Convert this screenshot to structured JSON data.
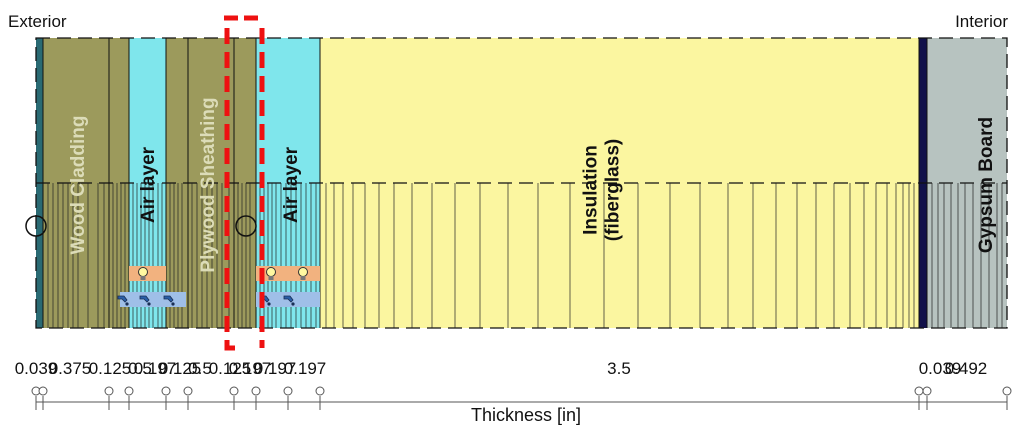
{
  "labels": {
    "exterior": "Exterior",
    "interior": "Interior",
    "axis_title": "Thickness [in]"
  },
  "layers": [
    {
      "name": "",
      "color": "#2a6a73"
    },
    {
      "name": "Wood Cladding",
      "color": "#9c9a5c"
    },
    {
      "name": "",
      "color": "#9c9a5c"
    },
    {
      "name": "Air layer",
      "color": "#7fe6ec"
    },
    {
      "name": "",
      "color": "#9c9a5c"
    },
    {
      "name": "Plywood Sheathing",
      "color": "#9c9a5c"
    },
    {
      "name": "",
      "color": "#9c9a5c"
    },
    {
      "name": "Air layer",
      "color": "#7fe6ec"
    },
    {
      "name": "Insulation (fiberglass)",
      "color": "#fbf6a0"
    },
    {
      "name": "",
      "color": "#11114a"
    },
    {
      "name": "Gypsum Board",
      "color": "#b7c3c0"
    }
  ],
  "thickness_labels": [
    {
      "text": "0.039"
    },
    {
      "text": "0.375"
    },
    {
      "text": "0.125"
    },
    {
      "text": "0.5"
    },
    {
      "text": "0.197"
    },
    {
      "text": "0.125"
    },
    {
      "text": "0.5"
    },
    {
      "text": "0.125"
    },
    {
      "text": "0.197"
    },
    {
      "text": "0.197"
    },
    {
      "text": "0.197"
    },
    {
      "text": "3.5"
    },
    {
      "text": "0.039"
    },
    {
      "text": "0.492"
    }
  ],
  "icons": [
    {
      "name": "light-bulb-icon"
    },
    {
      "name": "air-source-icon"
    }
  ]
}
